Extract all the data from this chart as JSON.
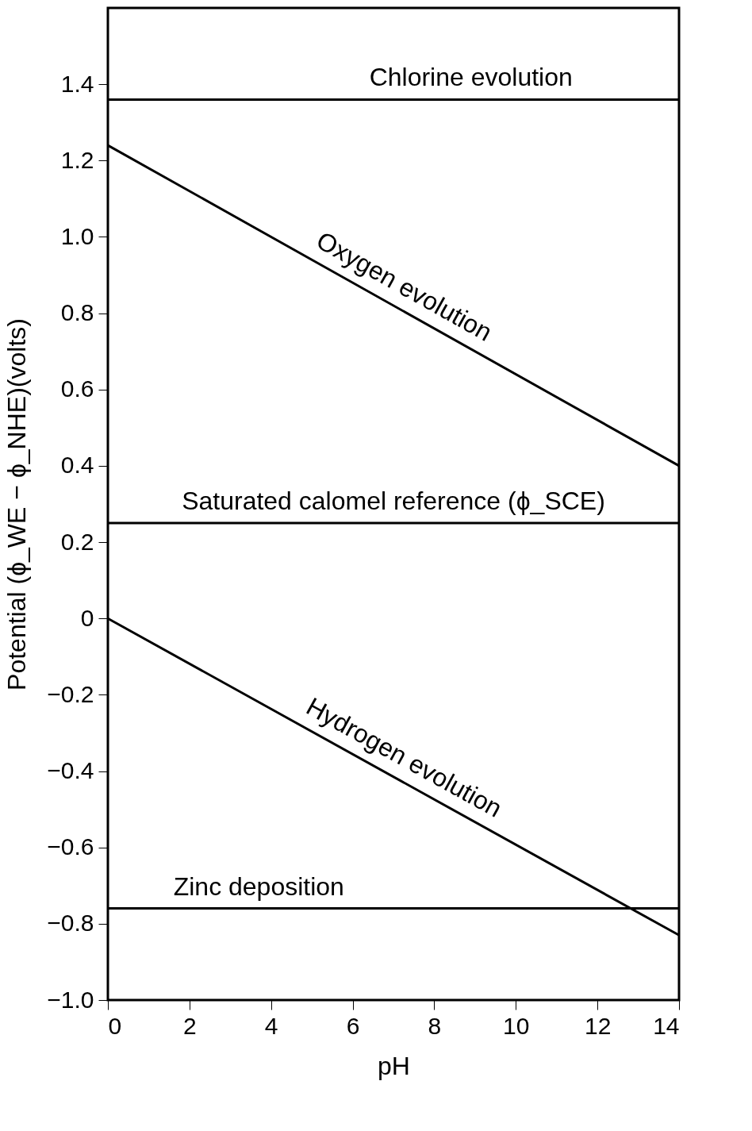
{
  "chart_data": {
    "type": "line",
    "xlabel": "pH",
    "ylabel": "Potential (ϕ_WE − ϕ_NHE)(volts)",
    "x": [
      0,
      14
    ],
    "series": [
      {
        "name": "Oxygen evolution",
        "color": "#000000",
        "values": [
          1.24,
          0.4
        ]
      },
      {
        "name": "Hydrogen evolution",
        "color": "#000000",
        "values": [
          0.0,
          -0.83
        ]
      }
    ],
    "ref_lines": [
      {
        "axis": "y",
        "value": 1.36,
        "color": "#000000"
      },
      {
        "axis": "y",
        "value": 0.25,
        "color": "#000000"
      },
      {
        "axis": "y",
        "value": -0.76,
        "color": "#000000"
      }
    ],
    "annotations": [
      {
        "text": "Chlorine evolution",
        "x": 8.9,
        "y": 1.36
      },
      {
        "text": "Saturated calomel reference (ϕ_SCE)",
        "x": 7.0,
        "y": 0.25
      },
      {
        "text": "Zinc deposition",
        "x": 3.7,
        "y": -0.76
      }
    ],
    "xlim": [
      0,
      14
    ],
    "ylim": [
      -1.0,
      1.6
    ],
    "xticks": [
      0,
      2,
      4,
      6,
      8,
      10,
      12,
      14
    ],
    "yticks": [
      {
        "value": -1.0,
        "label": "−1.0"
      },
      {
        "value": -0.8,
        "label": "−0.8"
      },
      {
        "value": -0.6,
        "label": "−0.6"
      },
      {
        "value": -0.4,
        "label": "−0.4"
      },
      {
        "value": -0.2,
        "label": "−0.2"
      },
      0,
      0.2,
      0.4,
      0.6,
      0.8,
      {
        "value": 1.0,
        "label": "1.0"
      },
      1.2,
      1.4
    ],
    "grid": false,
    "line_style": "solid"
  }
}
